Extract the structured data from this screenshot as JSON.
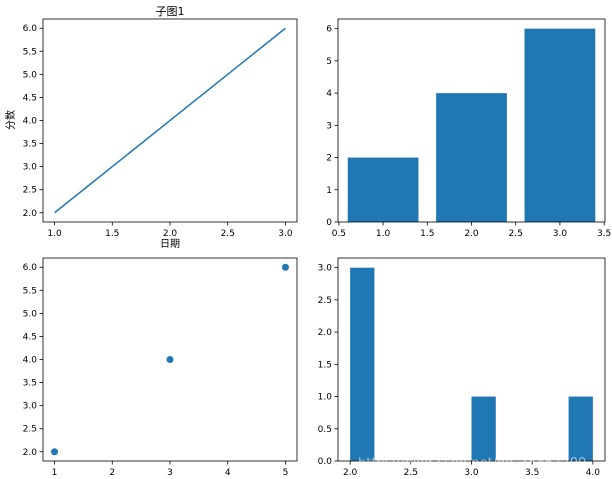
{
  "colors": {
    "series": "#1f77b4"
  },
  "watermark": "https://blog.csdn.net/qq_35867200",
  "chart_data": [
    {
      "id": "ax1",
      "type": "line",
      "title": "子图1",
      "xlabel": "日期",
      "ylabel": "分数",
      "x": [
        1,
        3
      ],
      "y": [
        2,
        6
      ],
      "xlim": [
        0.9,
        3.1
      ],
      "ylim": [
        1.8,
        6.2
      ],
      "xticks": [
        1.0,
        1.5,
        2.0,
        2.5,
        3.0
      ],
      "yticks": [
        2.0,
        2.5,
        3.0,
        3.5,
        4.0,
        4.5,
        5.0,
        5.5,
        6.0
      ],
      "xtick_labels": [
        "1.0",
        "1.5",
        "2.0",
        "2.5",
        "3.0"
      ],
      "ytick_labels": [
        "2.0",
        "2.5",
        "3.0",
        "3.5",
        "4.0",
        "4.5",
        "5.0",
        "5.5",
        "6.0"
      ],
      "grid": false
    },
    {
      "id": "ax2",
      "type": "bar",
      "title": "",
      "xlabel": "",
      "ylabel": "",
      "x": [
        1,
        2,
        3
      ],
      "values": [
        2,
        4,
        6
      ],
      "bar_width": 0.8,
      "xlim": [
        0.49,
        3.51
      ],
      "ylim": [
        0,
        6.3
      ],
      "xticks": [
        0.5,
        1.0,
        1.5,
        2.0,
        2.5,
        3.0,
        3.5
      ],
      "yticks": [
        0,
        1,
        2,
        3,
        4,
        5,
        6
      ],
      "xtick_labels": [
        "0.5",
        "1.0",
        "1.5",
        "2.0",
        "2.5",
        "3.0",
        "3.5"
      ],
      "ytick_labels": [
        "0",
        "1",
        "2",
        "3",
        "4",
        "5",
        "6"
      ],
      "grid": false
    },
    {
      "id": "ax3",
      "type": "scatter",
      "title": "",
      "xlabel": "",
      "ylabel": "",
      "x": [
        1,
        3,
        5
      ],
      "y": [
        2,
        4,
        6
      ],
      "xlim": [
        0.8,
        5.2
      ],
      "ylim": [
        1.8,
        6.2
      ],
      "xticks": [
        1,
        2,
        3,
        4,
        5
      ],
      "yticks": [
        2.0,
        2.5,
        3.0,
        3.5,
        4.0,
        4.5,
        5.0,
        5.5,
        6.0
      ],
      "xtick_labels": [
        "1",
        "2",
        "3",
        "4",
        "5"
      ],
      "ytick_labels": [
        "2.0",
        "2.5",
        "3.0",
        "3.5",
        "4.0",
        "4.5",
        "5.0",
        "5.5",
        "6.0"
      ],
      "grid": false
    },
    {
      "id": "ax4",
      "type": "bar",
      "title": "",
      "xlabel": "",
      "ylabel": "",
      "bins": [
        [
          2.0,
          2.2
        ],
        [
          3.0,
          3.2
        ],
        [
          3.8,
          4.0
        ]
      ],
      "values": [
        3,
        1,
        1
      ],
      "xlim": [
        1.9,
        4.1
      ],
      "ylim": [
        0,
        3.15
      ],
      "xticks": [
        2.0,
        2.5,
        3.0,
        3.5,
        4.0
      ],
      "yticks": [
        0.0,
        0.5,
        1.0,
        1.5,
        2.0,
        2.5,
        3.0
      ],
      "xtick_labels": [
        "2.0",
        "2.5",
        "3.0",
        "3.5",
        "4.0"
      ],
      "ytick_labels": [
        "0.0",
        "0.5",
        "1.0",
        "1.5",
        "2.0",
        "2.5",
        "3.0"
      ],
      "grid": false
    }
  ]
}
